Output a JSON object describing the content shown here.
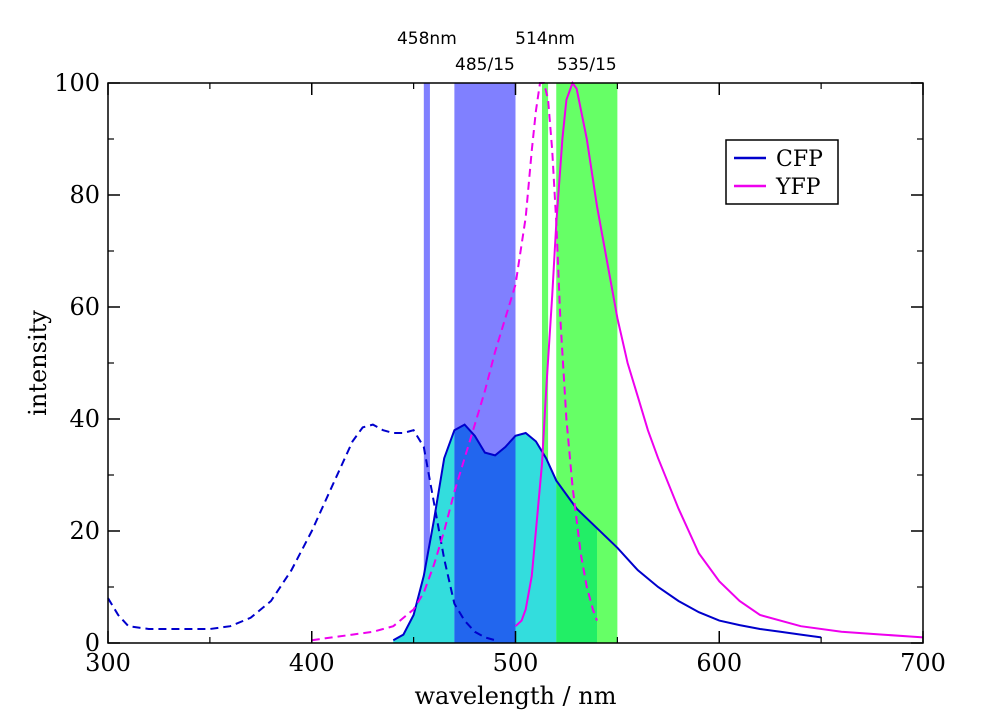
{
  "chart_data": {
    "type": "line",
    "title": "",
    "xlabel": "wavelength / nm",
    "ylabel": "intensity",
    "xlim": [
      300,
      700
    ],
    "ylim": [
      0,
      100
    ],
    "xticks": [
      300,
      400,
      500,
      600,
      700
    ],
    "yticks": [
      0,
      20,
      40,
      60,
      80,
      100
    ],
    "grid": false,
    "legend": {
      "placement": "top-right",
      "entries": [
        "CFP",
        "YFP"
      ]
    },
    "bands": [
      {
        "label": "458nm",
        "from": 455,
        "to": 458,
        "color": "#8080ff",
        "label_row": "upper"
      },
      {
        "label": "485/15",
        "from": 470,
        "to": 500,
        "color": "#8080ff",
        "label_row": "lower"
      },
      {
        "label": "514nm",
        "from": 513,
        "to": 516,
        "color": "#66ff66",
        "label_row": "upper"
      },
      {
        "label": "535/15",
        "from": 520,
        "to": 550,
        "color": "#66ff66",
        "label_row": "lower"
      }
    ],
    "series": [
      {
        "name": "CFP",
        "role": "excitation",
        "dash": "dashed",
        "color": "#0000cc",
        "x": [
          300,
          305,
          310,
          320,
          330,
          340,
          350,
          360,
          370,
          380,
          390,
          400,
          410,
          420,
          425,
          430,
          435,
          440,
          445,
          450,
          455,
          460,
          465,
          470,
          475,
          480,
          485,
          490
        ],
        "y": [
          8,
          5,
          3,
          2.5,
          2.5,
          2.5,
          2.5,
          3,
          4.5,
          7.5,
          13,
          20,
          28,
          36,
          38.5,
          39,
          38,
          37.5,
          37.5,
          38,
          35,
          25,
          15,
          7,
          4,
          2,
          1,
          0.5
        ]
      },
      {
        "name": "CFP",
        "role": "emission",
        "dash": "solid",
        "color": "#0000cc",
        "x": [
          440,
          445,
          450,
          455,
          460,
          465,
          470,
          475,
          480,
          485,
          490,
          495,
          500,
          505,
          510,
          515,
          520,
          530,
          540,
          550,
          560,
          570,
          580,
          590,
          600,
          610,
          620,
          630,
          640,
          650
        ],
        "y": [
          0.5,
          1.5,
          5,
          12,
          22,
          33,
          38,
          39,
          37,
          34,
          33.5,
          35,
          37,
          37.5,
          36,
          33,
          29,
          24,
          20.5,
          17,
          13,
          10,
          7.5,
          5.5,
          4,
          3.2,
          2.5,
          2,
          1.5,
          1
        ]
      },
      {
        "name": "YFP",
        "role": "excitation",
        "dash": "dashed",
        "color": "#ee00ee",
        "x": [
          400,
          410,
          420,
          430,
          440,
          450,
          455,
          460,
          465,
          470,
          475,
          480,
          485,
          490,
          495,
          500,
          505,
          508,
          510,
          512,
          514,
          516,
          518,
          520,
          522,
          525,
          528,
          530,
          532,
          535,
          538,
          540
        ],
        "y": [
          0.5,
          1,
          1.5,
          2,
          3,
          6,
          9,
          14,
          20,
          27,
          33,
          39,
          45,
          52,
          58,
          64,
          76,
          88,
          95,
          100,
          100,
          97,
          88,
          75,
          58,
          40,
          28,
          22,
          16,
          10,
          6,
          4
        ]
      },
      {
        "name": "YFP",
        "role": "emission",
        "dash": "solid",
        "color": "#ee00ee",
        "x": [
          500,
          503,
          505,
          508,
          510,
          513,
          515,
          518,
          520,
          523,
          525,
          528,
          530,
          535,
          540,
          545,
          550,
          555,
          560,
          565,
          570,
          580,
          590,
          600,
          610,
          620,
          640,
          660,
          680,
          700
        ],
        "y": [
          3,
          4,
          6,
          12,
          20,
          32,
          45,
          62,
          75,
          90,
          97,
          100,
          99,
          90,
          78,
          68,
          58,
          50,
          44,
          38,
          33,
          24,
          16,
          11,
          7.5,
          5,
          3,
          2,
          1.5,
          1
        ]
      }
    ]
  }
}
